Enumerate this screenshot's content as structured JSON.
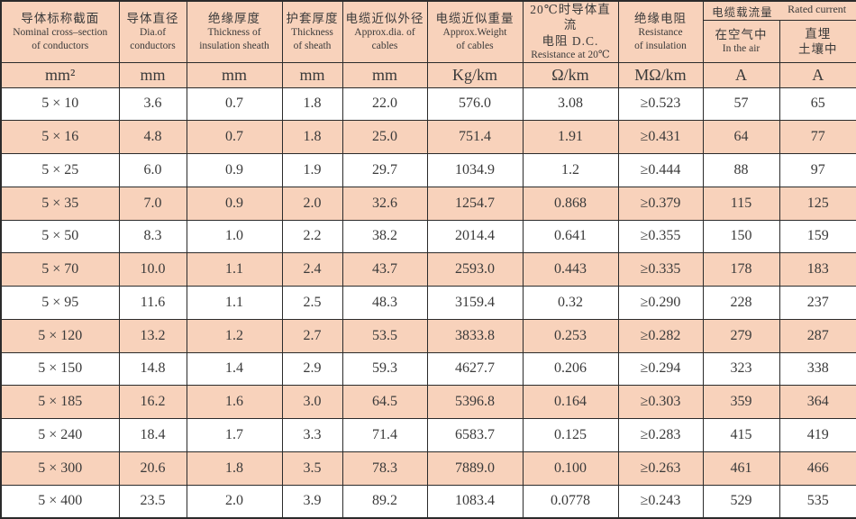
{
  "colors": {
    "row_and_header_pink": "#f8d2bb",
    "border": "#2b2b2b",
    "text": "#3a3a3a"
  },
  "header": {
    "cols": [
      {
        "lines": [
          "导体标称截面",
          "Nominal cross–section",
          "of conductors"
        ],
        "unit": "mm²"
      },
      {
        "lines": [
          "导体直径",
          "Dia.of",
          "conductors"
        ],
        "unit": "mm"
      },
      {
        "lines": [
          "绝缘厚度",
          "Thickness of",
          "insulation sheath"
        ],
        "unit": "mm"
      },
      {
        "lines": [
          "护套厚度",
          "Thickness",
          "of sheath"
        ],
        "unit": "mm"
      },
      {
        "lines": [
          "电缆近似外径",
          "Approx.dia. of",
          "cables"
        ],
        "unit": "mm"
      },
      {
        "lines": [
          "电缆近似重量",
          "Approx.Weight",
          "of cables"
        ],
        "unit": "Kg/km"
      },
      {
        "lines": [
          "20℃时导体直流",
          "电阻 D.C.",
          "Resistance at 20℃"
        ],
        "unit": "Ω/km"
      },
      {
        "lines": [
          "绝缘电阻",
          "Resistance",
          "of insulation"
        ],
        "unit": "MΩ/km"
      }
    ],
    "rated_current": {
      "zh": "电缆载流量",
      "en": "Rated current",
      "sub": [
        {
          "lines": [
            "在空气中",
            "In the air"
          ],
          "unit": "A"
        },
        {
          "lines": [
            "直埋",
            "土壤中"
          ],
          "unit": "A"
        }
      ]
    }
  },
  "rows": [
    {
      "cells": [
        "5 × 10",
        "3.6",
        "0.7",
        "1.8",
        "22.0",
        "576.0",
        "3.08",
        "≥0.523",
        "57",
        "65"
      ]
    },
    {
      "cells": [
        "5 × 16",
        "4.8",
        "0.7",
        "1.8",
        "25.0",
        "751.4",
        "1.91",
        "≥0.431",
        "64",
        "77"
      ]
    },
    {
      "cells": [
        "5 × 25",
        "6.0",
        "0.9",
        "1.9",
        "29.7",
        "1034.9",
        "1.2",
        "≥0.444",
        "88",
        "97"
      ]
    },
    {
      "cells": [
        "5 × 35",
        "7.0",
        "0.9",
        "2.0",
        "32.6",
        "1254.7",
        "0.868",
        "≥0.379",
        "115",
        "125"
      ]
    },
    {
      "cells": [
        "5 × 50",
        "8.3",
        "1.0",
        "2.2",
        "38.2",
        "2014.4",
        "0.641",
        "≥0.355",
        "150",
        "159"
      ]
    },
    {
      "cells": [
        "5 × 70",
        "10.0",
        "1.1",
        "2.4",
        "43.7",
        "2593.0",
        "0.443",
        "≥0.335",
        "178",
        "183"
      ]
    },
    {
      "cells": [
        "5 × 95",
        "11.6",
        "1.1",
        "2.5",
        "48.3",
        "3159.4",
        "0.32",
        "≥0.290",
        "228",
        "237"
      ]
    },
    {
      "cells": [
        "5 × 120",
        "13.2",
        "1.2",
        "2.7",
        "53.5",
        "3833.8",
        "0.253",
        "≥0.282",
        "279",
        "287"
      ]
    },
    {
      "cells": [
        "5 × 150",
        "14.8",
        "1.4",
        "2.9",
        "59.3",
        "4627.7",
        "0.206",
        "≥0.294",
        "323",
        "338"
      ]
    },
    {
      "cells": [
        "5 × 185",
        "16.2",
        "1.6",
        "3.0",
        "64.5",
        "5396.8",
        "0.164",
        "≥0.303",
        "359",
        "364"
      ]
    },
    {
      "cells": [
        "5 × 240",
        "18.4",
        "1.7",
        "3.3",
        "71.4",
        "6583.7",
        "0.125",
        "≥0.283",
        "415",
        "419"
      ]
    },
    {
      "cells": [
        "5 × 300",
        "20.6",
        "1.8",
        "3.5",
        "78.3",
        "7889.0",
        "0.100",
        "≥0.263",
        "461",
        "466"
      ]
    },
    {
      "cells": [
        "5 × 400",
        "23.5",
        "2.0",
        "3.9",
        "89.2",
        "1083.4",
        "0.0778",
        "≥0.243",
        "529",
        "535"
      ]
    }
  ]
}
